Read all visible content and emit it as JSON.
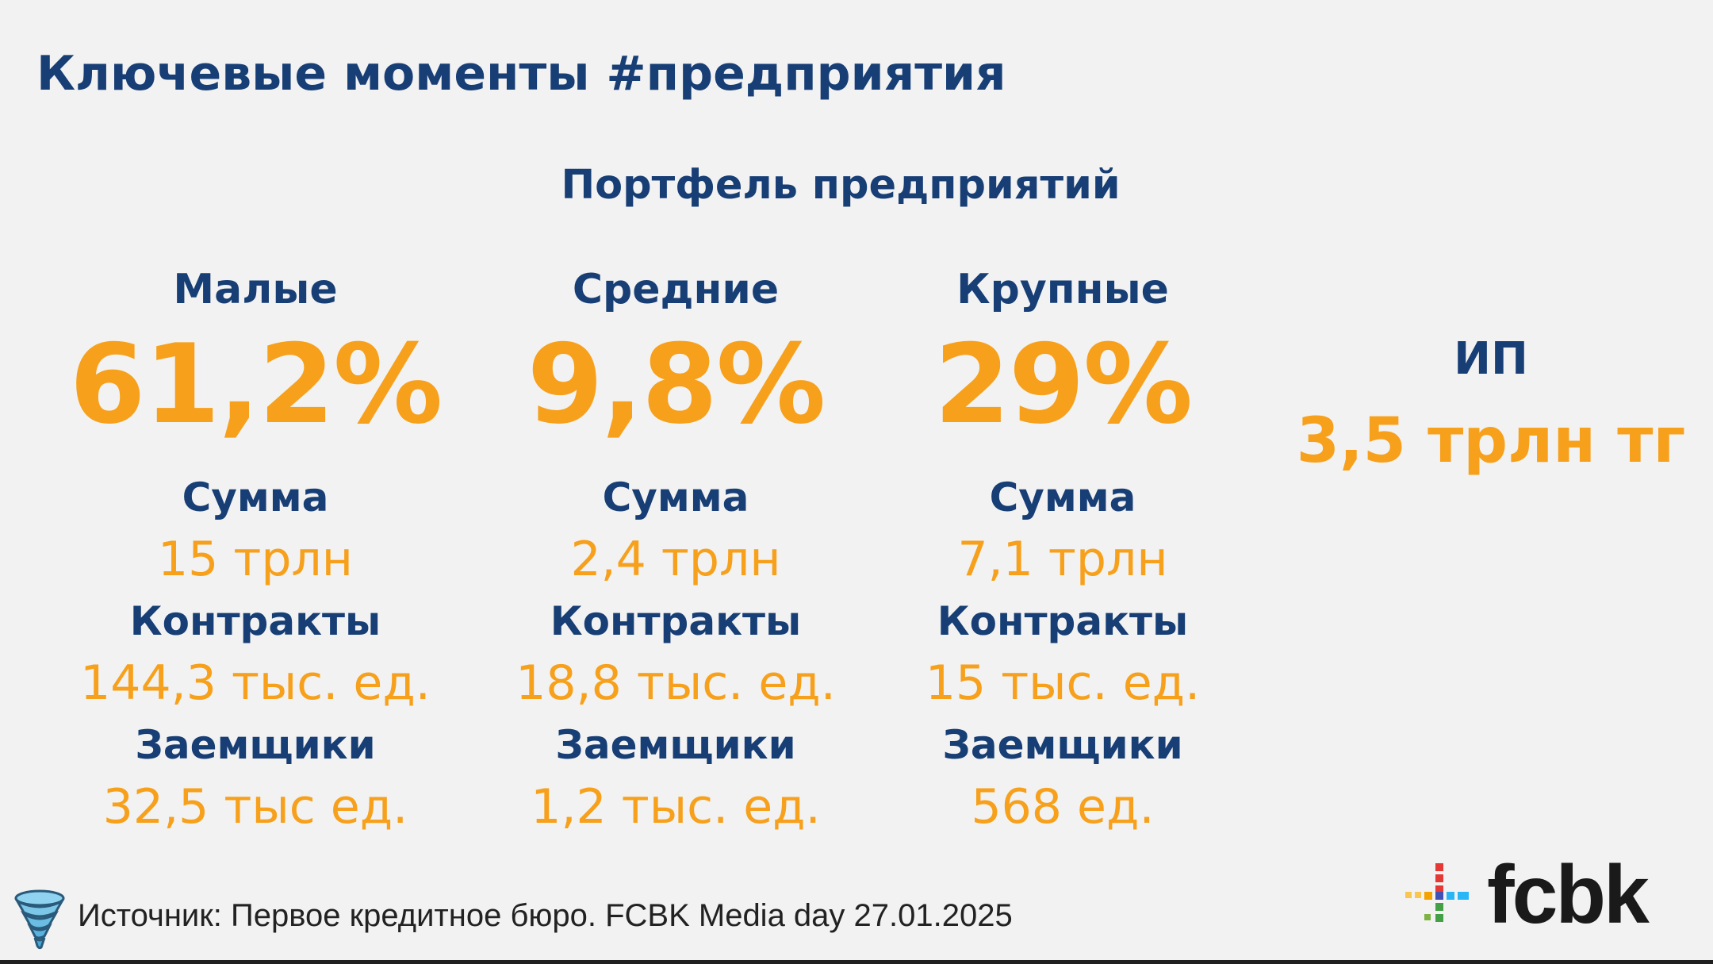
{
  "slide": {
    "title": "Ключевые моменты #предприятия",
    "subtitle": "Портфель предприятий"
  },
  "segments": [
    {
      "name": "Малые",
      "share": "61,2%",
      "sum_label": "Сумма",
      "sum_value": "15 трлн",
      "contracts_label": "Контракты",
      "contracts_value": "144,3 тыс. ед.",
      "borrowers_label": "Заемщики",
      "borrowers_value": "32,5 тыс ед."
    },
    {
      "name": "Средние",
      "share": "9,8%",
      "sum_label": "Сумма",
      "sum_value": "2,4 трлн",
      "contracts_label": "Контракты",
      "contracts_value": "18,8 тыс. ед.",
      "borrowers_label": "Заемщики",
      "borrowers_value": "1,2 тыс. ед."
    },
    {
      "name": "Крупные",
      "share": "29%",
      "sum_label": "Сумма",
      "sum_value": "7,1 трлн",
      "contracts_label": "Контракты",
      "contracts_value": "15 тыс. ед.",
      "borrowers_label": "Заемщики",
      "borrowers_value": "568 ед."
    }
  ],
  "ip": {
    "label": "ИП",
    "value": "3,5 трлн тг"
  },
  "footer": {
    "source": "Источник: Первое кредитное бюро. FCBK Media day 27.01.2025",
    "logo_text": "fcbk"
  },
  "colors": {
    "navy": "#173e75",
    "orange": "#f7a01b",
    "background": "#f2f2f2"
  },
  "icons": [
    "tornado-icon",
    "fcbk-logo"
  ]
}
